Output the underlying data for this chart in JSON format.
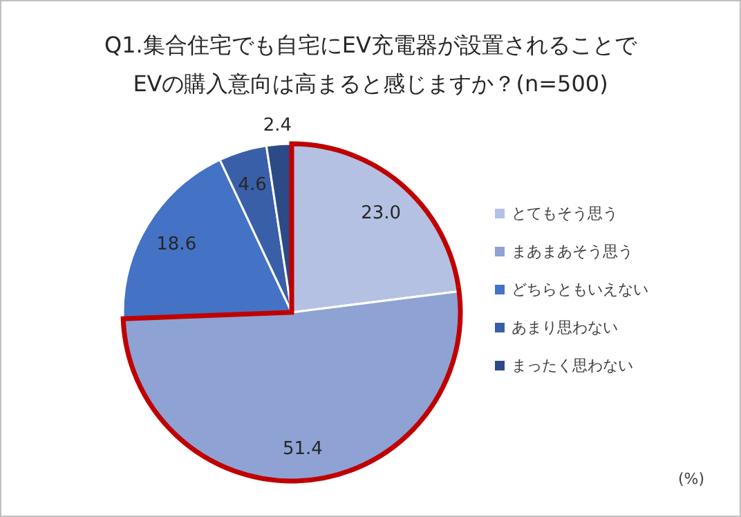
{
  "chart_data": {
    "type": "pie",
    "title": "Q1.集合住宅でも自宅にEV充電器が設置されることで\nEVの購入意向は高まると感じますか？(n=500)",
    "categories": [
      "とてもそう思う",
      "まあまあそう思う",
      "どちらともいえない",
      "あまり思わない",
      "まったく思わない"
    ],
    "values": [
      23.0,
      51.4,
      18.6,
      4.6,
      2.4
    ],
    "colors": [
      "#b4c1e3",
      "#8ea3d4",
      "#4472c4",
      "#3a5fa9",
      "#2c4a86"
    ],
    "value_labels": [
      "23.0",
      "51.4",
      "18.6",
      "4.6",
      "2.4"
    ],
    "legend": "right",
    "annotations": [
      "(%)"
    ]
  }
}
